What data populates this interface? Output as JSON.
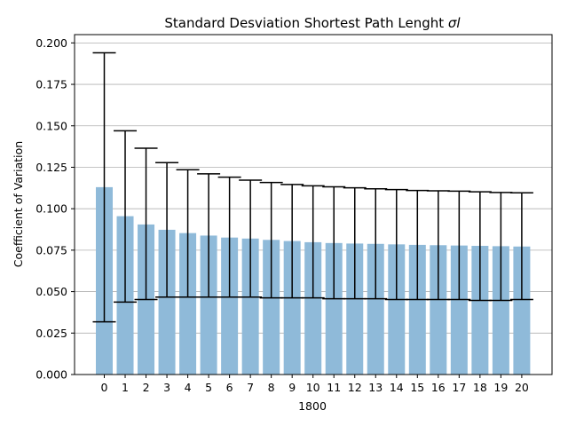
{
  "chart_data": {
    "type": "bar",
    "title": "Standard Desviation Shortest Path Lenght",
    "title_symbol": "σl",
    "xlabel": "1800",
    "ylabel": "Coefficient of Variation",
    "categories": [
      "0",
      "1",
      "2",
      "3",
      "4",
      "5",
      "6",
      "7",
      "8",
      "9",
      "10",
      "11",
      "12",
      "13",
      "14",
      "15",
      "16",
      "17",
      "18",
      "19",
      "20"
    ],
    "series": [
      {
        "values": [
          0.113,
          0.0955,
          0.0905,
          0.0873,
          0.0853,
          0.0838,
          0.0826,
          0.082,
          0.0812,
          0.0805,
          0.0798,
          0.0793,
          0.079,
          0.0788,
          0.0785,
          0.0782,
          0.078,
          0.0778,
          0.0776,
          0.0774,
          0.0772
        ],
        "error_low": [
          0.0318,
          0.0437,
          0.0452,
          0.0467,
          0.0467,
          0.0467,
          0.0467,
          0.0467,
          0.0462,
          0.0462,
          0.0462,
          0.0457,
          0.0457,
          0.0457,
          0.0452,
          0.0452,
          0.0452,
          0.0452,
          0.0447,
          0.0447,
          0.0452
        ],
        "error_high": [
          0.194,
          0.147,
          0.1365,
          0.1278,
          0.1235,
          0.121,
          0.119,
          0.1172,
          0.1158,
          0.1146,
          0.1138,
          0.1132,
          0.1126,
          0.112,
          0.1115,
          0.111,
          0.1108,
          0.1106,
          0.1102,
          0.1098,
          0.1096
        ]
      }
    ],
    "ylim": [
      0.0,
      0.205
    ],
    "yticks": [
      "0.000",
      "0.025",
      "0.050",
      "0.075",
      "0.100",
      "0.125",
      "0.150",
      "0.175",
      "0.200"
    ],
    "grid": "horizontal",
    "colors": {
      "bar": "#8fbad9",
      "error": "#000000",
      "grid": "#b0b0b0",
      "axis": "#000000"
    }
  }
}
